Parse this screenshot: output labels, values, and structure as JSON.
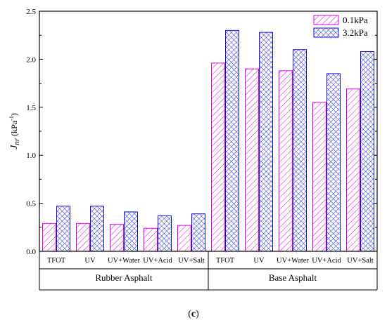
{
  "chart_data": {
    "type": "bar",
    "ylabel_main": "J",
    "ylabel_sub": "nr",
    "ylabel_unit_pre": " (kPa",
    "ylabel_unit_sup": "-1",
    "ylabel_unit_post": ")",
    "ylim": [
      0.0,
      2.5
    ],
    "yticks": [
      "0.0",
      "0.5",
      "1.0",
      "1.5",
      "2.0",
      "2.5"
    ],
    "yticks_values": [
      0.0,
      0.5,
      1.0,
      1.5,
      2.0,
      2.5
    ],
    "categories": [
      "TFOT",
      "UV",
      "UV+Water",
      "UV+Acid",
      "UV+Salt",
      "TFOT",
      "UV",
      "UV+Water",
      "UV+Acid",
      "UV+Salt"
    ],
    "groups": [
      {
        "label": "Rubber Asphalt",
        "count": 5
      },
      {
        "label": "Base Asphalt",
        "count": 5
      }
    ],
    "series": [
      {
        "name": "0.1kPa",
        "color": "#e000e0",
        "pattern": "diagonal-hatch",
        "values": [
          0.29,
          0.29,
          0.28,
          0.24,
          0.27,
          1.96,
          1.9,
          1.88,
          1.55,
          1.69
        ]
      },
      {
        "name": "3.2kPa",
        "color": "#1010e0",
        "pattern": "cross-hatch",
        "values": [
          0.47,
          0.47,
          0.41,
          0.37,
          0.39,
          2.3,
          2.28,
          2.1,
          1.85,
          2.08
        ]
      }
    ],
    "legend_position": "top-right",
    "grid": false
  },
  "caption": {
    "open": "(",
    "label": "c",
    "close": ")"
  }
}
